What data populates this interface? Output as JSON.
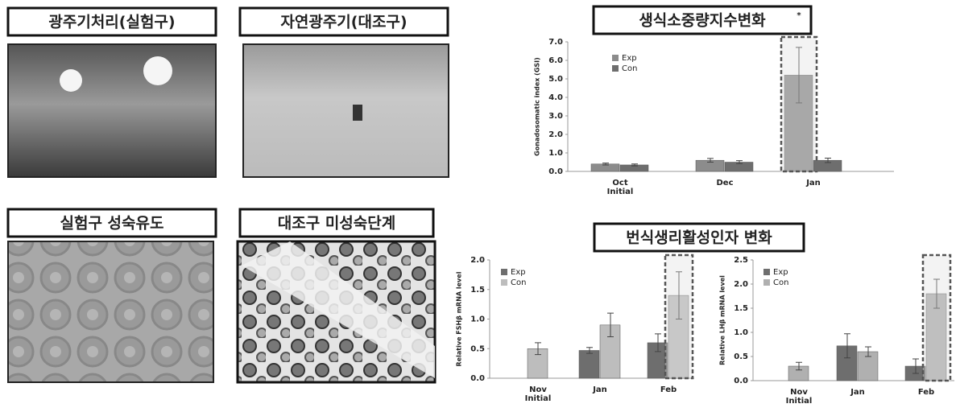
{
  "photos": [
    {
      "label": "광주기처리(실험구)"
    },
    {
      "label": "자연광주기(대조구)"
    },
    {
      "label": "실험구 성숙유도"
    },
    {
      "label": "대조구 미성숙단계"
    }
  ],
  "chart_data": [
    {
      "type": "bar",
      "title": "생식소중량지수변화",
      "y_label": "Gonadosomatic index (GSI)",
      "categories": [
        "Oct Initial",
        "Dec",
        "Jan"
      ],
      "series": [
        {
          "name": "Exp",
          "color": "#8c8c8c",
          "values": [
            0.4,
            0.6,
            5.2
          ],
          "errors": [
            0.05,
            0.1,
            1.5
          ]
        },
        {
          "name": "Con",
          "color": "#6e6e6e",
          "values": [
            0.35,
            0.5,
            0.6
          ],
          "errors": [
            0.05,
            0.08,
            0.12
          ]
        }
      ],
      "annotation": "*",
      "ylim": [
        0,
        7
      ],
      "yticks": [
        {
          "value": 0,
          "label": "0.0"
        },
        {
          "value": 1,
          "label": "1.0"
        },
        {
          "value": 2,
          "label": "2.0"
        },
        {
          "value": 3,
          "label": "3.0"
        },
        {
          "value": 4,
          "label": "4.0"
        },
        {
          "value": 5,
          "label": "5.0"
        },
        {
          "value": 6,
          "label": "6.0"
        },
        {
          "value": 7,
          "label": "7.0"
        }
      ],
      "highlight": [
        2,
        0
      ]
    },
    {
      "type": "bar",
      "title": "번식생리활성인자 변화",
      "y_label": "Relative FSHβ mRNA level",
      "categories": [
        "Nov Initial",
        "Jan",
        "Feb"
      ],
      "series": [
        {
          "name": "Exp",
          "color": "#6e6e6e",
          "values": [
            null,
            0.47,
            0.6
          ],
          "errors": [
            null,
            0.05,
            0.15
          ]
        },
        {
          "name": "Con",
          "color": "#bdbdbd",
          "values": [
            0.5,
            0.9,
            1.4
          ],
          "errors": [
            0.1,
            0.2,
            0.4
          ]
        }
      ],
      "ylim": [
        0,
        2
      ],
      "yticks": [
        {
          "value": 0,
          "label": "0.0"
        },
        {
          "value": 0.5,
          "label": "0.5"
        },
        {
          "value": 1,
          "label": "1.0"
        },
        {
          "value": 1.5,
          "label": "1.5"
        },
        {
          "value": 2,
          "label": "2.0"
        }
      ],
      "highlight": [
        2,
        1
      ]
    },
    {
      "type": "bar",
      "y_label": "Relative LHβ mRNA level",
      "categories": [
        "Nov Initial",
        "Jan",
        "Feb"
      ],
      "series": [
        {
          "name": "Exp",
          "color": "#6e6e6e",
          "values": [
            null,
            0.72,
            0.3
          ],
          "errors": [
            null,
            0.25,
            0.15
          ]
        },
        {
          "name": "Con",
          "color": "#b0b0b0",
          "values": [
            0.3,
            0.6,
            1.8
          ],
          "errors": [
            0.08,
            0.1,
            0.3
          ]
        }
      ],
      "ylim": [
        0,
        2.5
      ],
      "yticks": [
        {
          "value": 0,
          "label": "0.0"
        },
        {
          "value": 0.5,
          "label": "0.5"
        },
        {
          "value": 1,
          "label": "1.0"
        },
        {
          "value": 1.5,
          "label": "1.5"
        },
        {
          "value": 2,
          "label": "2.0"
        },
        {
          "value": 2.5,
          "label": "2.5"
        }
      ],
      "highlight": [
        2,
        1
      ]
    }
  ]
}
